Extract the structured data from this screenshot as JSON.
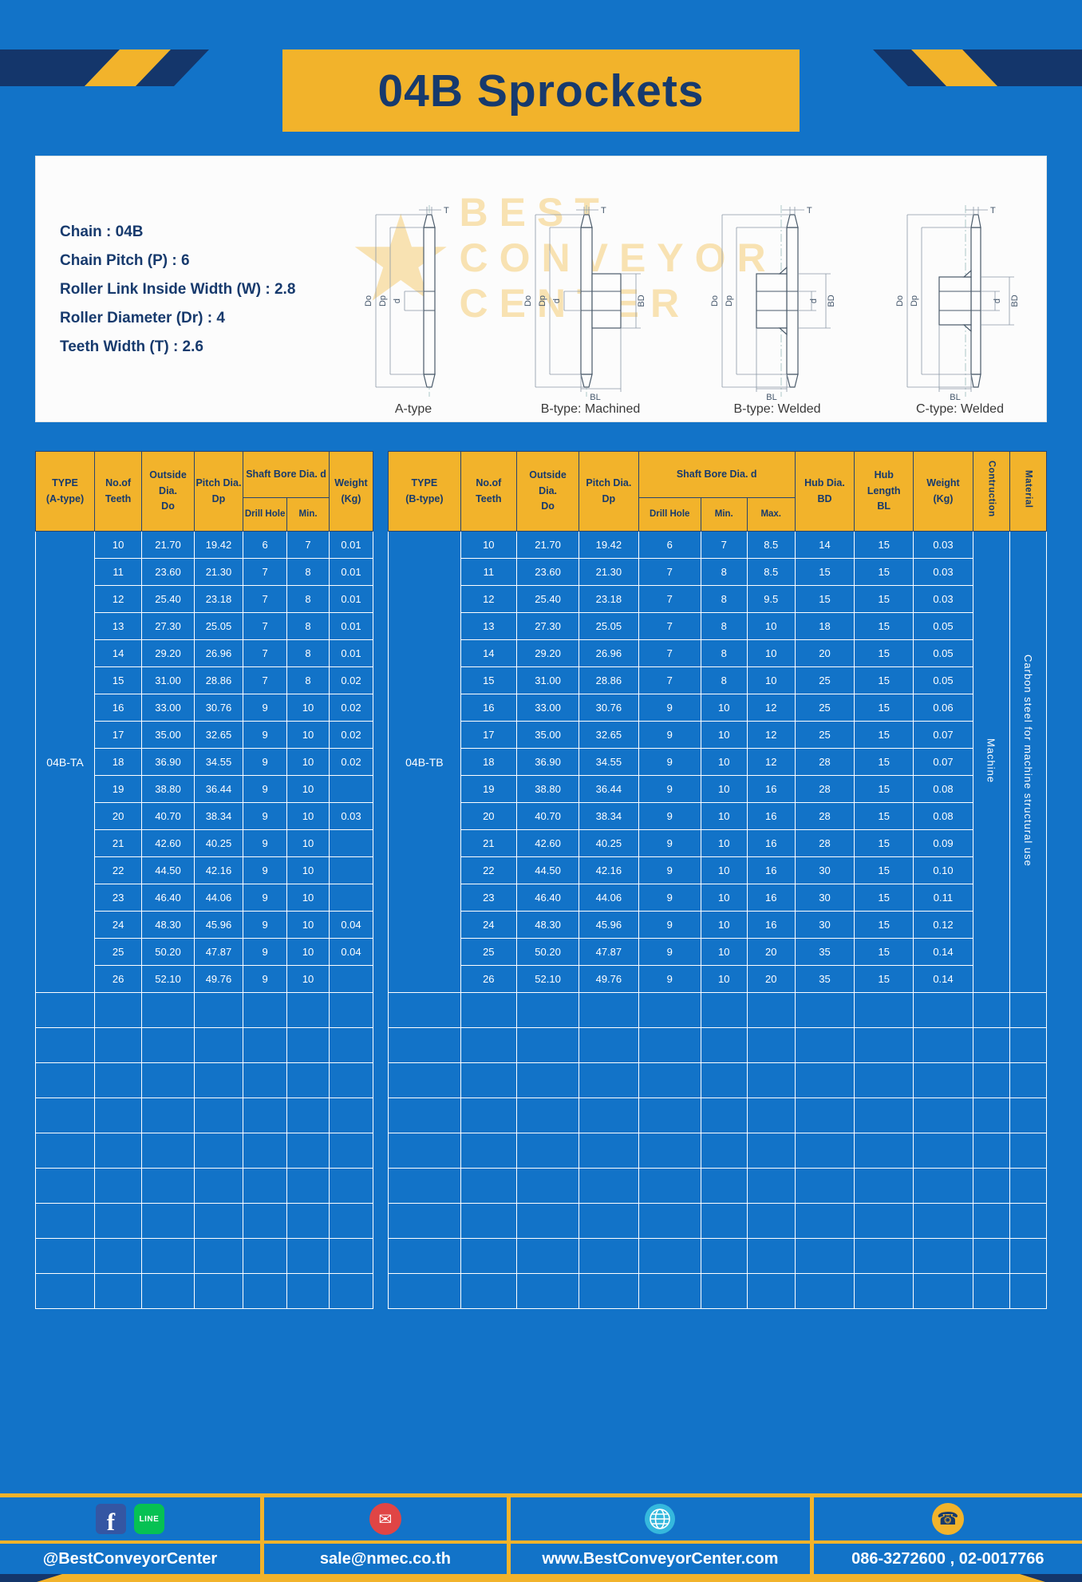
{
  "title": "04B Sprockets",
  "specs": {
    "lines": [
      "Chain : 04B",
      "Chain Pitch (P) : 6",
      "Roller Link Inside Width (W) : 2.8",
      "Roller Diameter (Dr) : 4",
      "Teeth Width (T) : 2.6"
    ]
  },
  "watermark": {
    "line1": "BEST",
    "line2": "CONVEYOR",
    "line3": "CENTER"
  },
  "diagrams": {
    "labels": [
      "A-type",
      "B-type: Machined",
      "B-type: Welded",
      "C-type: Welded"
    ],
    "dims": {
      "t": "T",
      "outer": "Do",
      "pitch": "Dp",
      "bore": "d",
      "hub_dia": "BD",
      "hub_len": "BL"
    }
  },
  "tables": {
    "left": {
      "headers": {
        "type": "TYPE\n(A-type)",
        "teeth": "No.of\nTeeth",
        "outside": "Outside\nDia.\nDo",
        "pitch": "Pitch Dia.\nDp",
        "shaft_bore": "Shaft Bore Dia. d",
        "drill": "Drill Hole",
        "min": "Min.",
        "weight": "Weight\n(Kg)"
      },
      "type_value": "04B-TA",
      "empty_rows": 9,
      "rows": [
        [
          "10",
          "21.70",
          "19.42",
          "6",
          "7",
          "0.01"
        ],
        [
          "11",
          "23.60",
          "21.30",
          "7",
          "8",
          "0.01"
        ],
        [
          "12",
          "25.40",
          "23.18",
          "7",
          "8",
          "0.01"
        ],
        [
          "13",
          "27.30",
          "25.05",
          "7",
          "8",
          "0.01"
        ],
        [
          "14",
          "29.20",
          "26.96",
          "7",
          "8",
          "0.01"
        ],
        [
          "15",
          "31.00",
          "28.86",
          "7",
          "8",
          "0.02"
        ],
        [
          "16",
          "33.00",
          "30.76",
          "9",
          "10",
          "0.02"
        ],
        [
          "17",
          "35.00",
          "32.65",
          "9",
          "10",
          "0.02"
        ],
        [
          "18",
          "36.90",
          "34.55",
          "9",
          "10",
          "0.02"
        ],
        [
          "19",
          "38.80",
          "36.44",
          "9",
          "10",
          ""
        ],
        [
          "20",
          "40.70",
          "38.34",
          "9",
          "10",
          "0.03"
        ],
        [
          "21",
          "42.60",
          "40.25",
          "9",
          "10",
          ""
        ],
        [
          "22",
          "44.50",
          "42.16",
          "9",
          "10",
          ""
        ],
        [
          "23",
          "46.40",
          "44.06",
          "9",
          "10",
          ""
        ],
        [
          "24",
          "48.30",
          "45.96",
          "9",
          "10",
          "0.04"
        ],
        [
          "25",
          "50.20",
          "47.87",
          "9",
          "10",
          "0.04"
        ],
        [
          "26",
          "52.10",
          "49.76",
          "9",
          "10",
          ""
        ]
      ]
    },
    "right": {
      "headers": {
        "type": "TYPE\n(B-type)",
        "teeth": "No.of\nTeeth",
        "outside": "Outside\nDia.\nDo",
        "pitch": "Pitch Dia.\nDp",
        "shaft_bore": "Shaft Bore Dia. d",
        "drill": "Drill Hole",
        "min": "Min.",
        "max": "Max.",
        "hub_dia": "Hub Dia.\nBD",
        "hub_len": "Hub\nLength\nBL",
        "weight": "Weight\n(Kg)",
        "construction": "Contruction",
        "material": "Material"
      },
      "type_value": "04B-TB",
      "construction_value": "Machine",
      "material_value": "Carbon steel for machine structural use",
      "empty_rows": 9,
      "rows": [
        [
          "10",
          "21.70",
          "19.42",
          "6",
          "7",
          "8.5",
          "14",
          "15",
          "0.03"
        ],
        [
          "11",
          "23.60",
          "21.30",
          "7",
          "8",
          "8.5",
          "15",
          "15",
          "0.03"
        ],
        [
          "12",
          "25.40",
          "23.18",
          "7",
          "8",
          "9.5",
          "15",
          "15",
          "0.03"
        ],
        [
          "13",
          "27.30",
          "25.05",
          "7",
          "8",
          "10",
          "18",
          "15",
          "0.05"
        ],
        [
          "14",
          "29.20",
          "26.96",
          "7",
          "8",
          "10",
          "20",
          "15",
          "0.05"
        ],
        [
          "15",
          "31.00",
          "28.86",
          "7",
          "8",
          "10",
          "25",
          "15",
          "0.05"
        ],
        [
          "16",
          "33.00",
          "30.76",
          "9",
          "10",
          "12",
          "25",
          "15",
          "0.06"
        ],
        [
          "17",
          "35.00",
          "32.65",
          "9",
          "10",
          "12",
          "25",
          "15",
          "0.07"
        ],
        [
          "18",
          "36.90",
          "34.55",
          "9",
          "10",
          "12",
          "28",
          "15",
          "0.07"
        ],
        [
          "19",
          "38.80",
          "36.44",
          "9",
          "10",
          "16",
          "28",
          "15",
          "0.08"
        ],
        [
          "20",
          "40.70",
          "38.34",
          "9",
          "10",
          "16",
          "28",
          "15",
          "0.08"
        ],
        [
          "21",
          "42.60",
          "40.25",
          "9",
          "10",
          "16",
          "28",
          "15",
          "0.09"
        ],
        [
          "22",
          "44.50",
          "42.16",
          "9",
          "10",
          "16",
          "30",
          "15",
          "0.10"
        ],
        [
          "23",
          "46.40",
          "44.06",
          "9",
          "10",
          "16",
          "30",
          "15",
          "0.11"
        ],
        [
          "24",
          "48.30",
          "45.96",
          "9",
          "10",
          "16",
          "30",
          "15",
          "0.12"
        ],
        [
          "25",
          "50.20",
          "47.87",
          "9",
          "10",
          "20",
          "35",
          "15",
          "0.14"
        ],
        [
          "26",
          "52.10",
          "49.76",
          "9",
          "10",
          "20",
          "35",
          "15",
          "0.14"
        ]
      ]
    }
  },
  "footer": {
    "facebook_letter": "f",
    "line_label": "LINE",
    "social_label": "@BestConveyorCenter",
    "email": "sale@nmec.co.th",
    "website": "www.BestConveyorCenter.com",
    "phones": "086-3272600 , 02-0017766"
  },
  "colors": {
    "blue": "#1273c8",
    "yellow": "#f2b32b",
    "navy": "#173a6d"
  }
}
